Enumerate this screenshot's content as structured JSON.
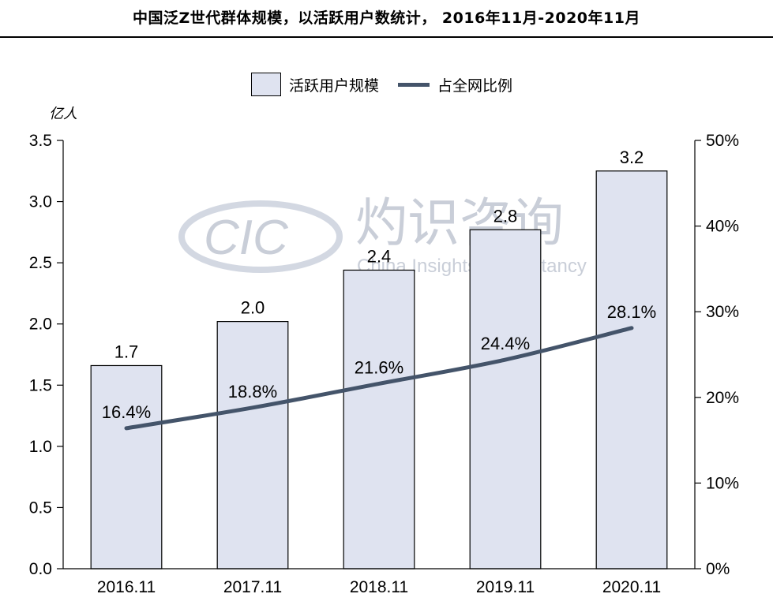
{
  "title": "中国泛Z世代群体规模，以活跃用户数统计， 2016年11月-2020年11月",
  "legend": {
    "bar_label": "活跃用户规模",
    "line_label": "占全网比例"
  },
  "unit_label": "亿人",
  "watermark": {
    "logo": "CIC",
    "cn": "灼识咨询",
    "en": "China Insights Consultancy"
  },
  "colors": {
    "bar_fill": "#dfe3f0",
    "bar_stroke": "#000000",
    "line": "#44546a"
  },
  "chart_data": {
    "type": "bar",
    "categories": [
      "2016.11",
      "2017.11",
      "2018.11",
      "2019.11",
      "2020.11"
    ],
    "series": [
      {
        "name": "活跃用户规模",
        "type": "bar",
        "axis": "left",
        "values": [
          1.66,
          2.02,
          2.44,
          2.77,
          3.25
        ],
        "labels": [
          "1.7",
          "2.0",
          "2.4",
          "2.8",
          "3.2"
        ]
      },
      {
        "name": "占全网比例",
        "type": "line",
        "axis": "right",
        "values": [
          16.4,
          18.8,
          21.6,
          24.4,
          28.1
        ],
        "labels": [
          "16.4%",
          "18.8%",
          "21.6%",
          "24.4%",
          "28.1%"
        ]
      }
    ],
    "y_left": {
      "lim": [
        0,
        3.5
      ],
      "ticks": [
        "0.0",
        "0.5",
        "1.0",
        "1.5",
        "2.0",
        "2.5",
        "3.0",
        "3.5"
      ]
    },
    "y_right": {
      "lim": [
        0,
        50
      ],
      "ticks": [
        "0%",
        "10%",
        "20%",
        "30%",
        "40%",
        "50%"
      ]
    },
    "grid": false,
    "legend_position": "top-center"
  }
}
